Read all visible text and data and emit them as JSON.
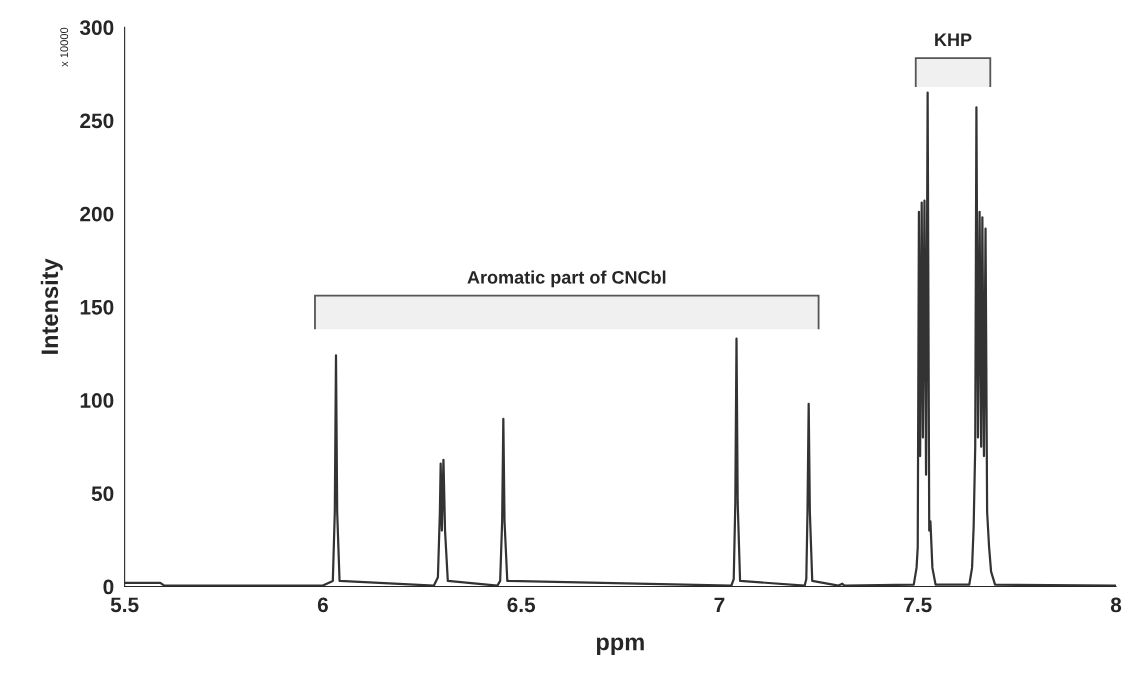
{
  "chart_data": {
    "type": "line",
    "xlabel": "ppm",
    "ylabel": "Intensity",
    "annotations": [
      "x 10000"
    ],
    "bands": [
      {
        "axis": "x",
        "from": 5.98,
        "to": 7.25,
        "label": "Aromatic part of CNCbl"
      },
      {
        "axis": "x",
        "from": 7.495,
        "to": 7.683,
        "label": "KHP"
      }
    ],
    "xlim": [
      5.5,
      8
    ],
    "xticks": [
      5.5,
      6,
      6.5,
      7,
      7.5,
      8
    ],
    "ylim": [
      0,
      300
    ],
    "yticks": [
      0,
      50,
      100,
      150,
      200,
      250,
      300
    ],
    "grid": false,
    "legend": false,
    "marker": "none",
    "line_style": "solid",
    "series": [
      {
        "color": "#333333",
        "x": [
          5.5,
          5.59,
          5.6,
          6.0,
          6.025,
          6.03,
          6.033,
          6.036,
          6.042,
          6.28,
          6.29,
          6.295,
          6.297,
          6.3,
          6.304,
          6.308,
          6.315,
          6.44,
          6.447,
          6.452,
          6.455,
          6.458,
          6.465,
          7.03,
          7.036,
          7.04,
          7.043,
          7.046,
          7.052,
          7.215,
          7.219,
          7.222,
          7.225,
          7.228,
          7.234,
          7.3,
          7.31,
          7.315,
          7.49,
          7.497,
          7.5,
          7.503,
          7.506,
          7.51,
          7.513,
          7.517,
          7.521,
          7.525,
          7.529,
          7.532,
          7.537,
          7.545,
          7.63,
          7.637,
          7.641,
          7.645,
          7.648,
          7.652,
          7.656,
          7.66,
          7.663,
          7.667,
          7.671,
          7.675,
          7.68,
          7.685,
          7.695,
          8.0
        ],
        "values": [
          2,
          2,
          0.5,
          0.5,
          3,
          40,
          124,
          40,
          3,
          0.5,
          5,
          40,
          66,
          30,
          68,
          30,
          3,
          0.5,
          3,
          35,
          90,
          35,
          3,
          0.5,
          4,
          45,
          133,
          45,
          3,
          0.5,
          4,
          40,
          98,
          40,
          3,
          0.5,
          1.5,
          0.5,
          1,
          10,
          21,
          201,
          70,
          206,
          80,
          207,
          60,
          265,
          30,
          35,
          10,
          1,
          1,
          10,
          32,
          75,
          257,
          80,
          201,
          75,
          198,
          70,
          192,
          40,
          21,
          8,
          1,
          0.5
        ]
      }
    ]
  }
}
